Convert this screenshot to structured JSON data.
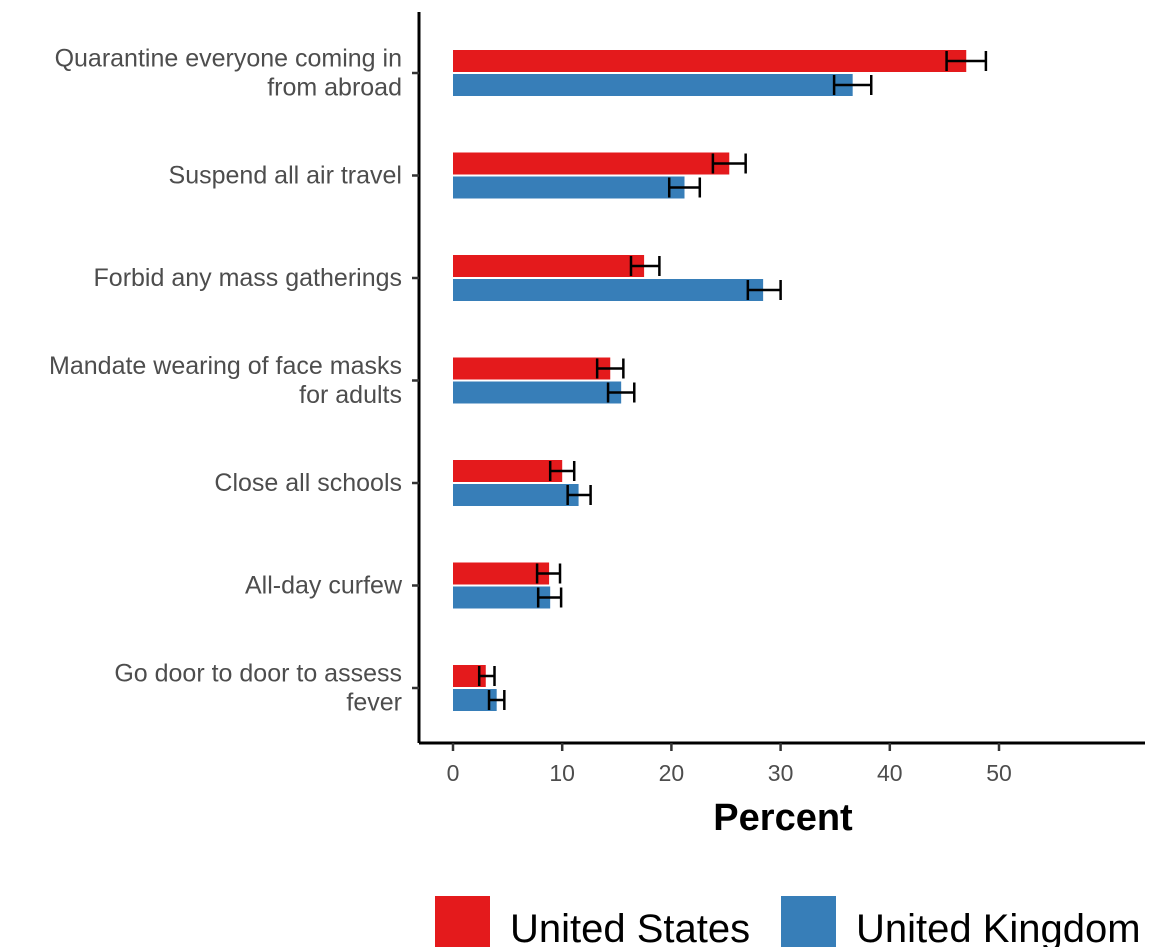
{
  "chart_data": {
    "type": "bar",
    "orientation": "horizontal",
    "categories": [
      [
        "Quarantine everyone coming in",
        "from abroad"
      ],
      [
        "Suspend all air travel"
      ],
      [
        "Forbid any mass gatherings"
      ],
      [
        "Mandate wearing of face masks",
        "for adults"
      ],
      [
        "Close all schools"
      ],
      [
        "All-day curfew"
      ],
      [
        "Go door to door to assess",
        "fever"
      ]
    ],
    "series": [
      {
        "name": "United States",
        "color": "#e41a1c",
        "values": [
          47.0,
          25.3,
          17.5,
          14.4,
          10.0,
          8.8,
          3.0
        ],
        "error_low": [
          45.2,
          23.8,
          16.3,
          13.2,
          8.9,
          7.7,
          2.4
        ],
        "error_high": [
          48.8,
          26.8,
          18.9,
          15.6,
          11.1,
          9.8,
          3.8
        ]
      },
      {
        "name": "United Kingdom",
        "color": "#377eb8",
        "values": [
          36.6,
          21.2,
          28.4,
          15.4,
          11.5,
          8.9,
          4.0
        ],
        "error_low": [
          34.9,
          19.8,
          27.0,
          14.2,
          10.5,
          7.8,
          3.3
        ],
        "error_high": [
          38.3,
          22.6,
          30.0,
          16.6,
          12.6,
          9.9,
          4.7
        ]
      }
    ],
    "xlabel": "Percent",
    "ylabel": "",
    "xticks": [
      0,
      10,
      20,
      30,
      40,
      50
    ],
    "xlim": [
      -3,
      63
    ],
    "grid": false,
    "legend_position": "bottom"
  }
}
